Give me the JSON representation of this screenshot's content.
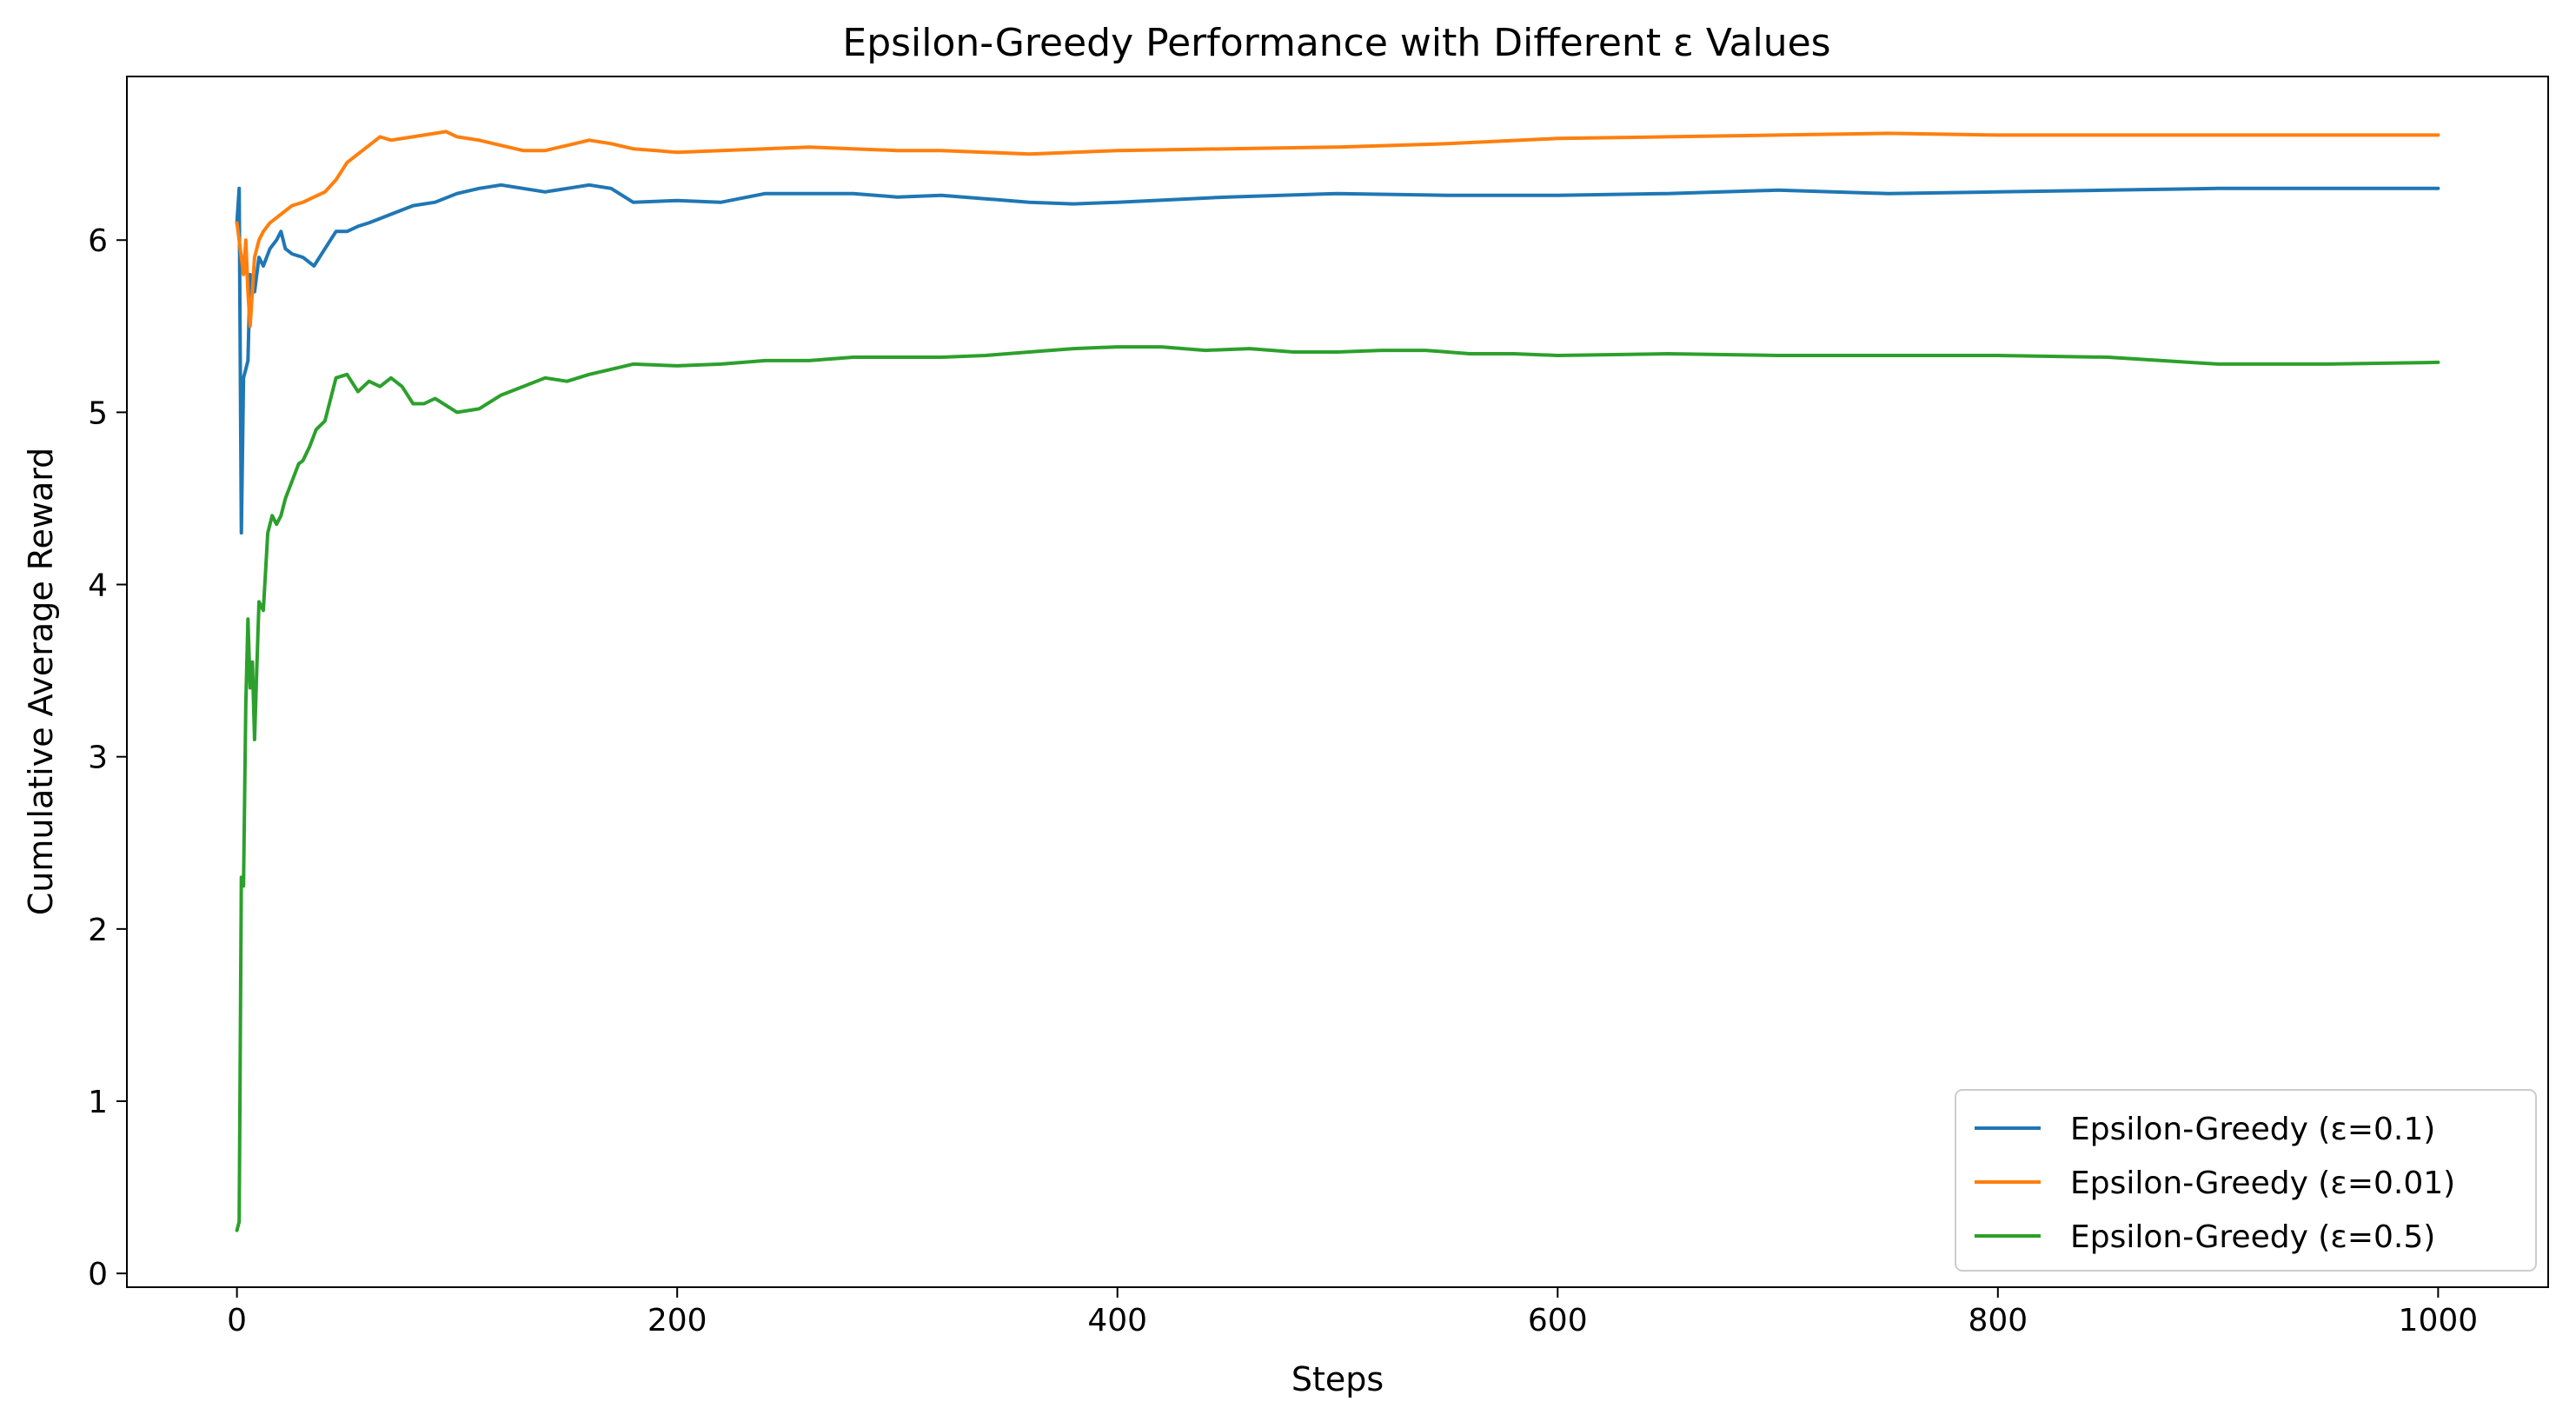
{
  "chart_data": {
    "type": "line",
    "title": "Epsilon-Greedy Performance with Different ε Values",
    "xlabel": "Steps",
    "ylabel": "Cumulative Average Reward",
    "xlim": [
      -50,
      1050
    ],
    "ylim": [
      -0.08,
      6.95
    ],
    "xticks": [
      0,
      200,
      400,
      600,
      800,
      1000
    ],
    "yticks": [
      0,
      1,
      2,
      3,
      4,
      5,
      6
    ],
    "grid": false,
    "legend_position": "lower-right",
    "series": [
      {
        "name": "Epsilon-Greedy (ε=0.1)",
        "color": "#1f77b4",
        "x": [
          0,
          1,
          2,
          3,
          4,
          5,
          6,
          8,
          10,
          12,
          15,
          18,
          20,
          22,
          25,
          30,
          35,
          40,
          45,
          50,
          55,
          60,
          70,
          80,
          90,
          100,
          110,
          120,
          130,
          140,
          150,
          160,
          170,
          180,
          200,
          220,
          240,
          260,
          280,
          300,
          320,
          340,
          360,
          380,
          400,
          450,
          500,
          550,
          600,
          650,
          700,
          750,
          800,
          850,
          900,
          950,
          1000
        ],
        "y": [
          6.1,
          6.3,
          4.3,
          5.2,
          5.25,
          5.3,
          5.8,
          5.7,
          5.9,
          5.85,
          5.95,
          6.0,
          6.05,
          5.95,
          5.92,
          5.9,
          5.85,
          5.95,
          6.05,
          6.05,
          6.08,
          6.1,
          6.15,
          6.2,
          6.22,
          6.27,
          6.3,
          6.32,
          6.3,
          6.28,
          6.3,
          6.32,
          6.3,
          6.22,
          6.23,
          6.22,
          6.27,
          6.27,
          6.27,
          6.25,
          6.26,
          6.24,
          6.22,
          6.21,
          6.22,
          6.25,
          6.27,
          6.26,
          6.26,
          6.27,
          6.29,
          6.27,
          6.28,
          6.29,
          6.3,
          6.3,
          6.3
        ]
      },
      {
        "name": "Epsilon-Greedy (ε=0.01)",
        "color": "#ff7f0e",
        "x": [
          0,
          1,
          2,
          3,
          4,
          5,
          6,
          8,
          10,
          12,
          15,
          20,
          25,
          30,
          35,
          40,
          45,
          50,
          55,
          60,
          65,
          70,
          80,
          90,
          95,
          100,
          110,
          120,
          130,
          140,
          150,
          160,
          170,
          180,
          200,
          220,
          240,
          260,
          280,
          300,
          320,
          340,
          360,
          380,
          400,
          450,
          500,
          550,
          600,
          650,
          700,
          750,
          800,
          850,
          900,
          950,
          1000
        ],
        "y": [
          6.1,
          6.0,
          5.9,
          5.8,
          6.0,
          5.7,
          5.5,
          5.9,
          6.0,
          6.05,
          6.1,
          6.15,
          6.2,
          6.22,
          6.25,
          6.28,
          6.35,
          6.45,
          6.5,
          6.55,
          6.6,
          6.58,
          6.6,
          6.62,
          6.63,
          6.6,
          6.58,
          6.55,
          6.52,
          6.52,
          6.55,
          6.58,
          6.56,
          6.53,
          6.51,
          6.52,
          6.53,
          6.54,
          6.53,
          6.52,
          6.52,
          6.51,
          6.5,
          6.51,
          6.52,
          6.53,
          6.54,
          6.56,
          6.59,
          6.6,
          6.61,
          6.62,
          6.61,
          6.61,
          6.61,
          6.61,
          6.61
        ]
      },
      {
        "name": "Epsilon-Greedy (ε=0.5)",
        "color": "#2ca02c",
        "x": [
          0,
          1,
          2,
          3,
          4,
          5,
          6,
          7,
          8,
          9,
          10,
          12,
          14,
          16,
          18,
          20,
          22,
          25,
          28,
          30,
          33,
          36,
          40,
          45,
          50,
          55,
          60,
          65,
          70,
          75,
          80,
          85,
          90,
          100,
          110,
          120,
          130,
          140,
          150,
          160,
          170,
          180,
          200,
          220,
          240,
          260,
          280,
          300,
          320,
          340,
          360,
          380,
          400,
          420,
          440,
          460,
          480,
          500,
          520,
          540,
          560,
          580,
          600,
          650,
          700,
          750,
          800,
          850,
          900,
          950,
          1000
        ],
        "y": [
          0.25,
          0.3,
          2.3,
          2.25,
          3.3,
          3.8,
          3.4,
          3.55,
          3.1,
          3.5,
          3.9,
          3.85,
          4.3,
          4.4,
          4.35,
          4.4,
          4.5,
          4.6,
          4.7,
          4.72,
          4.8,
          4.9,
          4.95,
          5.2,
          5.22,
          5.12,
          5.18,
          5.15,
          5.2,
          5.15,
          5.05,
          5.05,
          5.08,
          5.0,
          5.02,
          5.1,
          5.15,
          5.2,
          5.18,
          5.22,
          5.25,
          5.28,
          5.27,
          5.28,
          5.3,
          5.3,
          5.32,
          5.32,
          5.32,
          5.33,
          5.35,
          5.37,
          5.38,
          5.38,
          5.36,
          5.37,
          5.35,
          5.35,
          5.36,
          5.36,
          5.34,
          5.34,
          5.33,
          5.34,
          5.33,
          5.33,
          5.33,
          5.32,
          5.28,
          5.28,
          5.29
        ]
      }
    ]
  }
}
